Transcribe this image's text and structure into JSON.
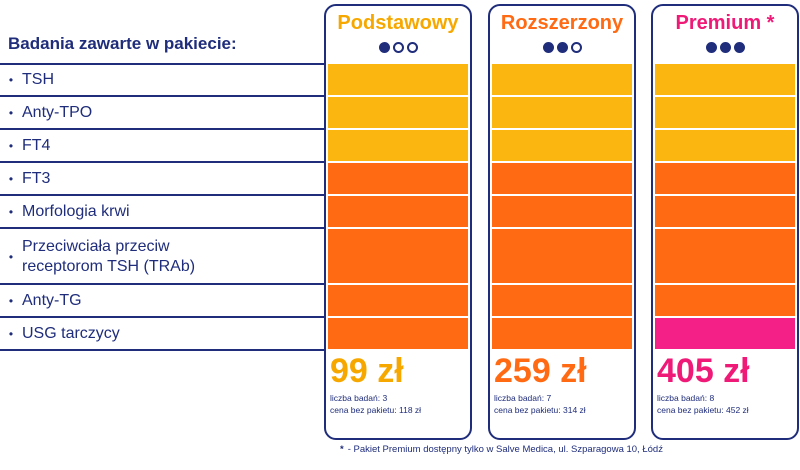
{
  "tests_header": "Badania zawarte w pakiecie:",
  "tests": [
    {
      "label_lines": [
        "TSH"
      ]
    },
    {
      "label_lines": [
        "Anty-TPO"
      ]
    },
    {
      "label_lines": [
        "FT4"
      ]
    },
    {
      "label_lines": [
        "FT3"
      ]
    },
    {
      "label_lines": [
        "Morfologia krwi"
      ]
    },
    {
      "label_lines": [
        "Przeciwciała przeciw",
        "receptorom TSH (TRAb)"
      ]
    },
    {
      "label_lines": [
        "Anty-TG"
      ]
    },
    {
      "label_lines": [
        "USG tarczycy"
      ]
    }
  ],
  "bullet_glyph": "•",
  "packages": [
    {
      "title": "Podstawowy",
      "title_color": "#f7a800",
      "level_filled": 1,
      "level_total": 3,
      "cell_colors": [
        "#fbb70f",
        "#fbb70f",
        "#fbb70f",
        "#ff6a13",
        "#ff6a13",
        "#ff6a13",
        "#ff6a13",
        "#ff6a13"
      ],
      "price": "99 zł",
      "price_color": "#f7a800",
      "count_text": "liczba badań: 3",
      "noncomplete_text": "cena bez pakietu: 118 zł"
    },
    {
      "title": "Rozszerzony",
      "title_color": "#ff6a13",
      "level_filled": 2,
      "level_total": 3,
      "cell_colors": [
        "#fbb70f",
        "#fbb70f",
        "#fbb70f",
        "#ff6a13",
        "#ff6a13",
        "#ff6a13",
        "#ff6a13",
        "#ff6a13"
      ],
      "price": "259 zł",
      "price_color": "#ff6a13",
      "count_text": "liczba badań: 7",
      "noncomplete_text": "cena bez pakietu: 314 zł"
    },
    {
      "title": "Premium *",
      "title_color": "#ef1a78",
      "level_filled": 3,
      "level_total": 3,
      "cell_colors": [
        "#fbb70f",
        "#fbb70f",
        "#fbb70f",
        "#ff6a13",
        "#ff6a13",
        "#ff6a13",
        "#ff6a13",
        "#f51f88"
      ],
      "price": "405 zł",
      "price_color": "#ef1a78",
      "count_text": "liczba badań: 8",
      "noncomplete_text": "cena bez pakietu: 452 zł"
    }
  ],
  "footnote": {
    "star": "*",
    "text": "- Pakiet Premium dostępny tylko w Salve Medica, ul. Szparagowa 10, Łódź"
  }
}
